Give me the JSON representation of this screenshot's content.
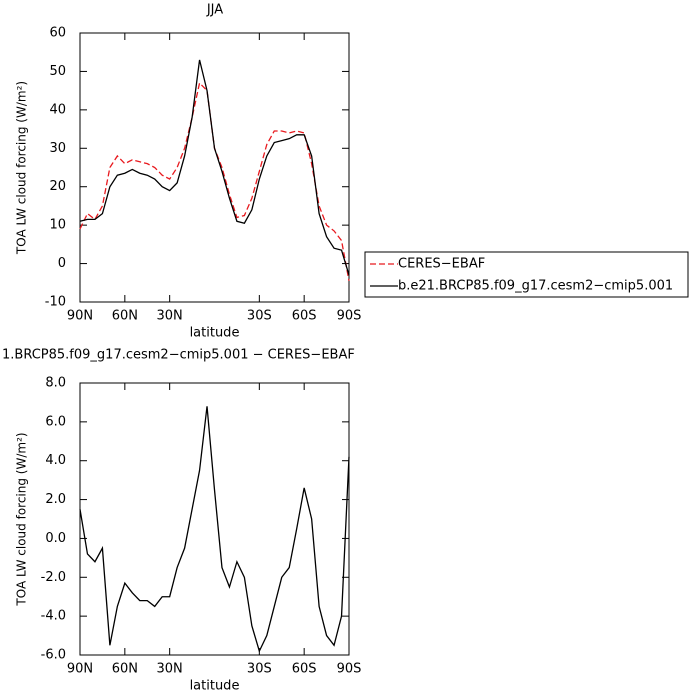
{
  "chart_data": [
    {
      "type": "line",
      "title": "JJA",
      "x_label": "latitude",
      "y_label": "TOA LW cloud forcing (W/m²)",
      "x": [
        90,
        85,
        80,
        75,
        70,
        65,
        60,
        55,
        50,
        45,
        40,
        35,
        30,
        25,
        20,
        15,
        10,
        5,
        0,
        -5,
        -10,
        -15,
        -20,
        -25,
        -30,
        -35,
        -40,
        -45,
        -50,
        -55,
        -60,
        -65,
        -70,
        -75,
        -80,
        -85,
        -90
      ],
      "series": [
        {
          "name": "CERES−EBAF",
          "color": "#e8191e",
          "line_style": "dashed",
          "values": [
            9,
            13,
            11.5,
            15,
            25,
            28,
            26,
            27,
            26.5,
            26,
            25,
            23,
            22,
            25,
            30,
            38,
            47,
            45,
            30,
            25,
            18,
            12,
            12.5,
            17,
            24,
            31,
            34.5,
            34.5,
            34,
            34.5,
            34,
            26,
            15,
            10,
            8.5,
            6,
            -4.5
          ]
        },
        {
          "name": "b.e21.BRCP85.f09_g17.cesm2−cmip5.001",
          "color": "#000000",
          "line_style": "solid",
          "values": [
            11,
            11.5,
            11.5,
            13,
            20,
            23,
            23.5,
            24.5,
            23.5,
            23,
            22,
            20,
            19,
            21,
            28,
            38,
            53,
            45,
            30,
            24,
            17,
            11,
            10.5,
            14,
            22,
            28,
            31.5,
            32,
            32.5,
            33.5,
            33.5,
            28,
            13,
            7,
            4,
            3.5,
            -3
          ]
        }
      ],
      "xlim": [
        90,
        -90
      ],
      "xticks": [
        {
          "value": 90,
          "label": "90N"
        },
        {
          "value": 60,
          "label": "60N"
        },
        {
          "value": 30,
          "label": "30N"
        },
        {
          "value": -30,
          "label": "30S"
        },
        {
          "value": -60,
          "label": "60S"
        },
        {
          "value": -90,
          "label": "90S"
        }
      ],
      "ylim": [
        -10,
        60
      ],
      "yticks": [
        -10,
        0,
        10,
        20,
        30,
        40,
        50,
        60
      ],
      "legend": "right"
    },
    {
      "type": "line",
      "title": "1.BRCP85.f09_g17.cesm2−cmip5.001 − CERES−EBAF",
      "x_label": "latitude",
      "y_label": "TOA LW cloud forcing (W/m²)",
      "x": [
        90,
        85,
        80,
        75,
        70,
        65,
        60,
        55,
        50,
        45,
        40,
        35,
        30,
        25,
        20,
        15,
        10,
        5,
        0,
        -5,
        -10,
        -15,
        -20,
        -25,
        -30,
        -35,
        -40,
        -45,
        -50,
        -55,
        -60,
        -65,
        -70,
        -75,
        -80,
        -85,
        -90
      ],
      "series": [
        {
          "color": "#000000",
          "line_style": "solid",
          "values": [
            1.5,
            -0.8,
            -1.2,
            -0.5,
            -5.5,
            -3.5,
            -2.3,
            -2.8,
            -3.2,
            -3.2,
            -3.5,
            -3.0,
            -3.0,
            -1.5,
            -0.5,
            1.5,
            3.5,
            6.8,
            2.5,
            -1.5,
            -2.5,
            -1.2,
            -2.0,
            -4.5,
            -5.8,
            -5.0,
            -3.5,
            -2.0,
            -1.5,
            0.5,
            2.6,
            1.0,
            -3.5,
            -5.0,
            -5.5,
            -4.0,
            4.2
          ]
        }
      ],
      "xlim": [
        90,
        -90
      ],
      "xticks": [
        {
          "value": 90,
          "label": "90N"
        },
        {
          "value": 60,
          "label": "60N"
        },
        {
          "value": 30,
          "label": "30N"
        },
        {
          "value": -30,
          "label": "30S"
        },
        {
          "value": -60,
          "label": "60S"
        },
        {
          "value": -90,
          "label": "90S"
        }
      ],
      "ylim": [
        -6,
        8
      ],
      "yticks": [
        {
          "value": -6,
          "label": "-6.0"
        },
        {
          "value": -4,
          "label": "-4.0"
        },
        {
          "value": -2,
          "label": "-2.0"
        },
        {
          "value": 0,
          "label": "0.0"
        },
        {
          "value": 2,
          "label": "2.0"
        },
        {
          "value": 4,
          "label": "4.0"
        },
        {
          "value": 6,
          "label": "6.0"
        },
        {
          "value": 8,
          "label": "8.0"
        }
      ]
    }
  ]
}
